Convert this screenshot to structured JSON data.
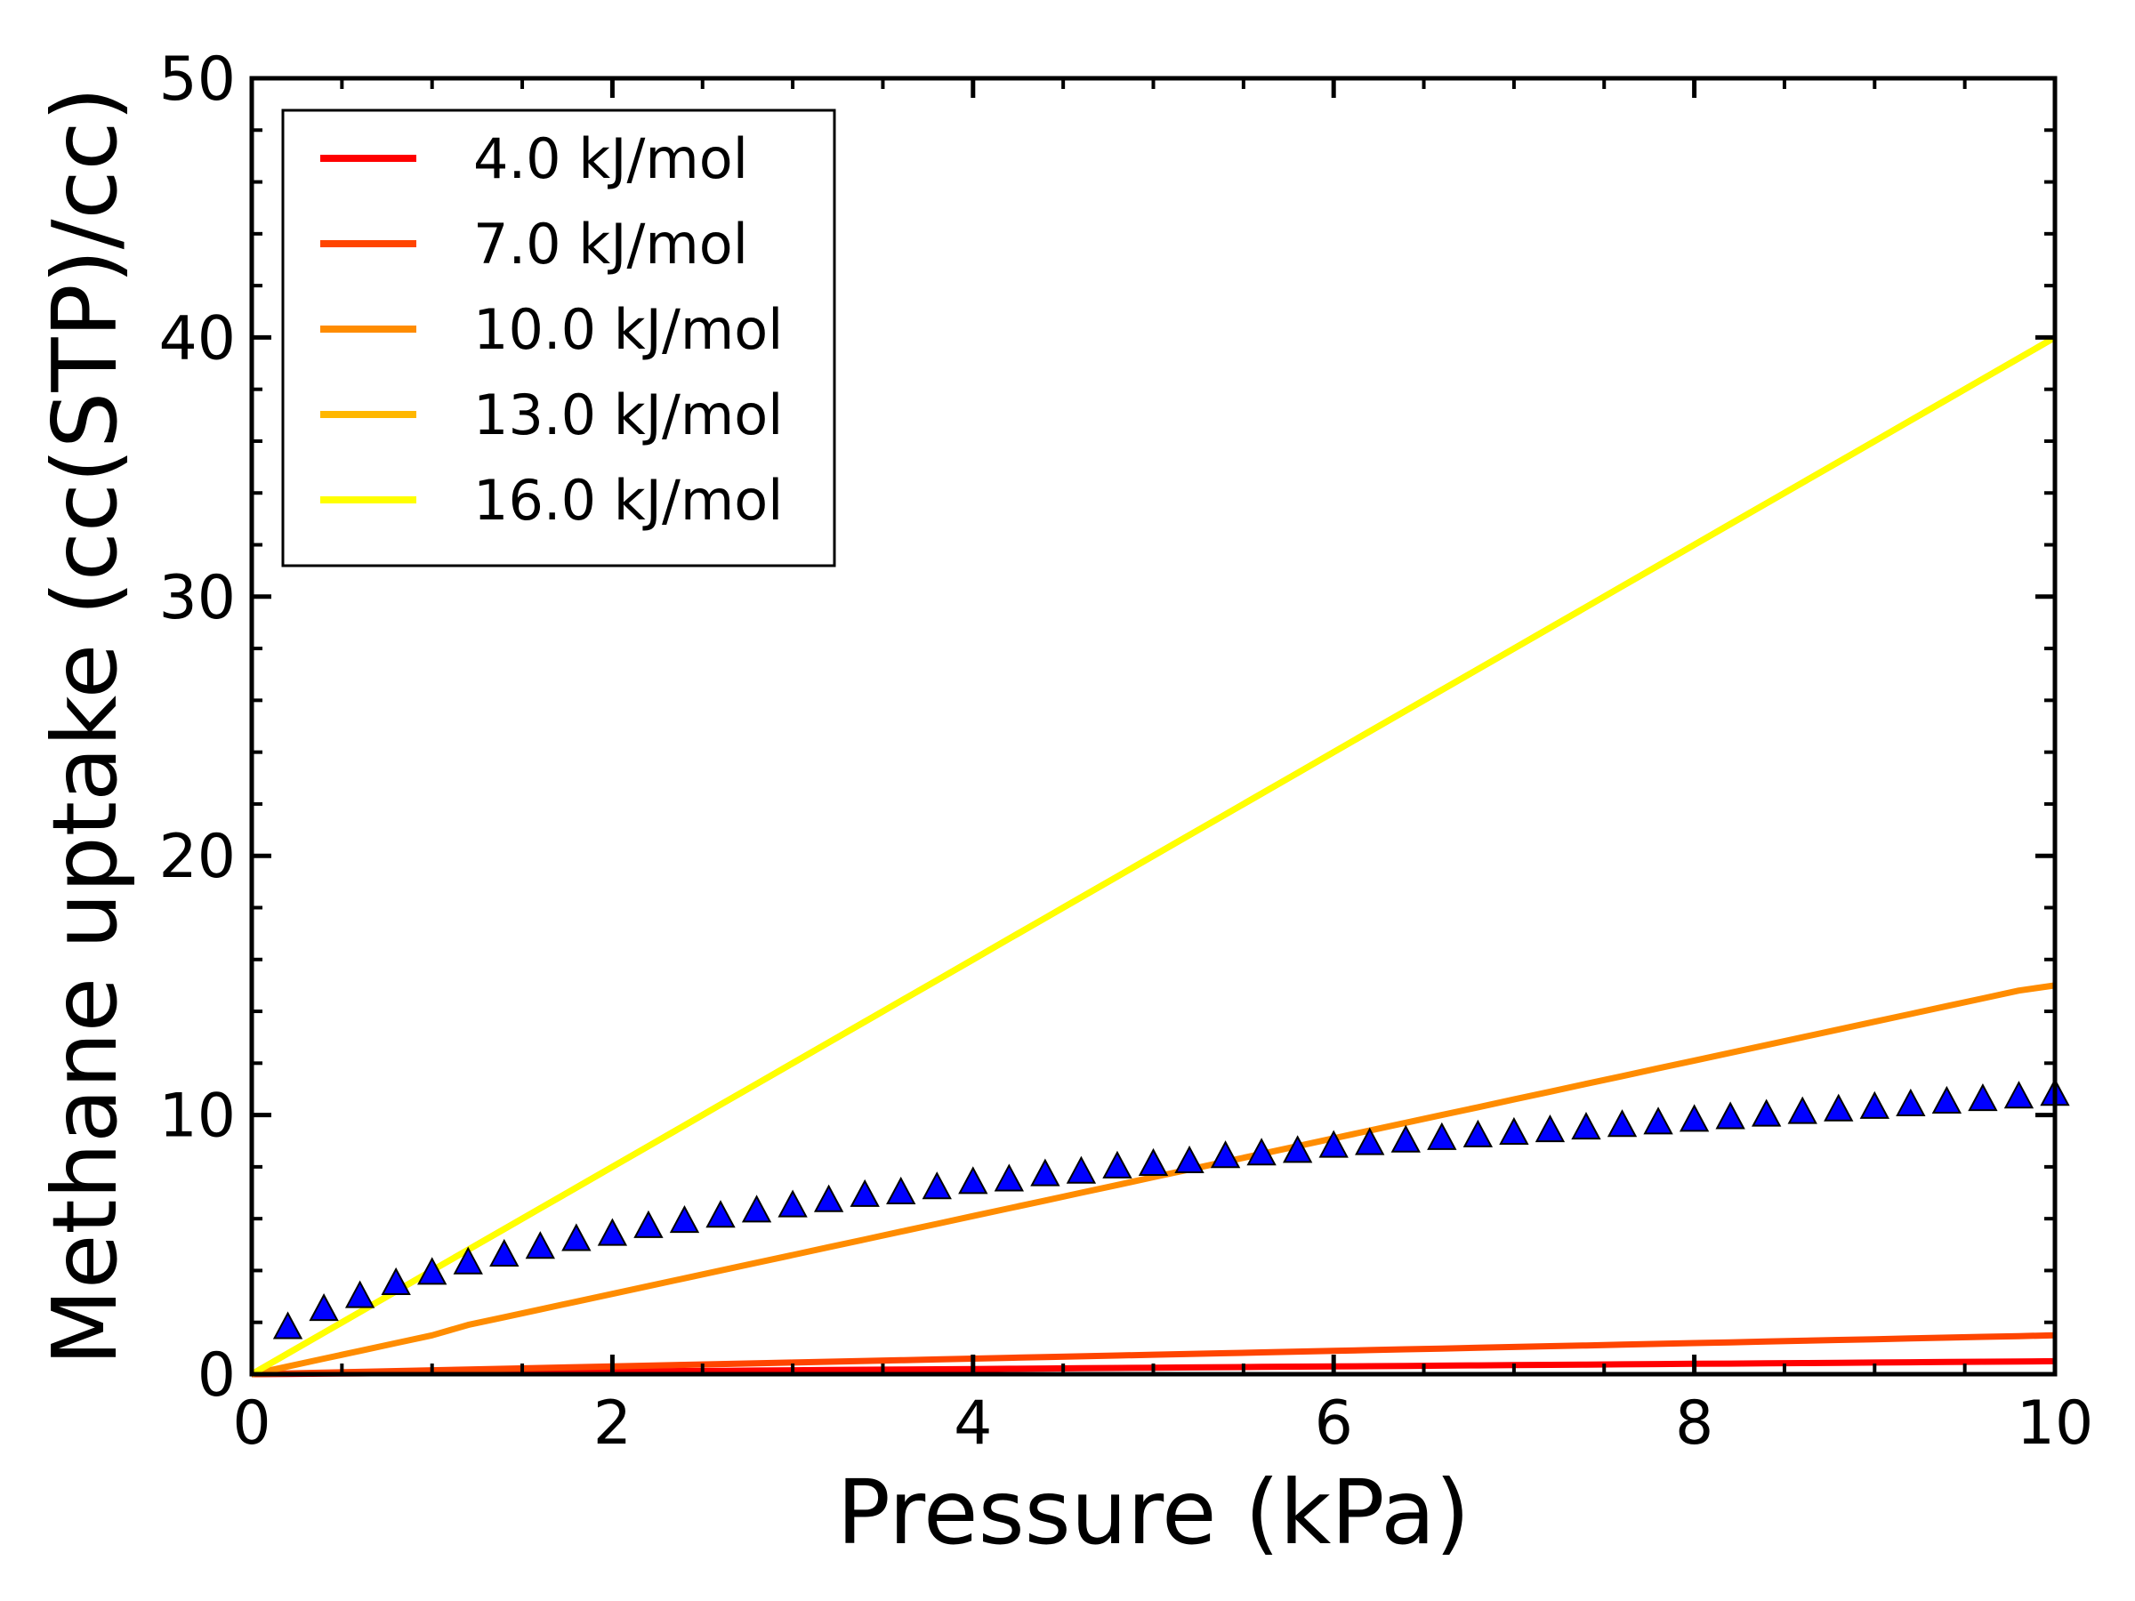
{
  "chart_data": {
    "type": "line",
    "xlabel": "Pressure (kPa)",
    "ylabel": "Methane uptake (cc(STP)/cc)",
    "xlim": [
      0,
      10
    ],
    "ylim": [
      0,
      50
    ],
    "xticks": [
      0,
      2,
      4,
      6,
      8,
      10
    ],
    "yticks": [
      0,
      10,
      20,
      30,
      40,
      50
    ],
    "grid": false,
    "legend_position": "top-left",
    "x": [
      0,
      0.2,
      0.4,
      0.6,
      0.8,
      1.0,
      1.2,
      1.4,
      1.6,
      1.8,
      2.0,
      2.2,
      2.4,
      2.6,
      2.8,
      3.0,
      3.2,
      3.4,
      3.6,
      3.8,
      4.0,
      4.2,
      4.4,
      4.6,
      4.8,
      5.0,
      5.2,
      5.4,
      5.6,
      5.8,
      6.0,
      6.2,
      6.4,
      6.6,
      6.8,
      7.0,
      7.2,
      7.4,
      7.6,
      7.8,
      8.0,
      8.2,
      8.4,
      8.6,
      8.8,
      9.0,
      9.2,
      9.4,
      9.6,
      9.8,
      10.0
    ],
    "series": [
      {
        "name": "4.0 kJ/mol",
        "color": "#ff0000",
        "values": [
          0,
          0.01,
          0.02,
          0.03,
          0.04,
          0.05,
          0.06,
          0.07,
          0.08,
          0.09,
          0.1,
          0.11,
          0.12,
          0.13,
          0.14,
          0.15,
          0.16,
          0.17,
          0.18,
          0.19,
          0.2,
          0.21,
          0.22,
          0.23,
          0.24,
          0.25,
          0.26,
          0.27,
          0.28,
          0.29,
          0.3,
          0.31,
          0.32,
          0.33,
          0.34,
          0.35,
          0.36,
          0.37,
          0.38,
          0.39,
          0.4,
          0.41,
          0.42,
          0.43,
          0.44,
          0.45,
          0.46,
          0.47,
          0.48,
          0.49,
          0.5
        ]
      },
      {
        "name": "7.0 kJ/mol",
        "color": "#ff4500",
        "values": [
          0,
          0.03,
          0.06,
          0.09,
          0.12,
          0.15,
          0.18,
          0.21,
          0.24,
          0.27,
          0.3,
          0.33,
          0.36,
          0.39,
          0.42,
          0.45,
          0.48,
          0.51,
          0.54,
          0.57,
          0.6,
          0.63,
          0.66,
          0.69,
          0.72,
          0.75,
          0.78,
          0.81,
          0.84,
          0.87,
          0.9,
          0.93,
          0.96,
          0.99,
          1.02,
          1.05,
          1.08,
          1.11,
          1.14,
          1.17,
          1.2,
          1.23,
          1.26,
          1.29,
          1.32,
          1.35,
          1.38,
          1.41,
          1.44,
          1.47,
          1.5
        ]
      },
      {
        "name": "10.0 kJ/mol",
        "color": "#ff8c00",
        "values": [
          0,
          0.3,
          0.6,
          0.9,
          1.2,
          1.5,
          1.9,
          2.2,
          2.5,
          2.8,
          3.1,
          3.4,
          3.7,
          4.0,
          4.3,
          4.6,
          4.9,
          5.2,
          5.5,
          5.8,
          6.1,
          6.4,
          6.7,
          7.0,
          7.3,
          7.6,
          7.9,
          8.2,
          8.5,
          8.8,
          9.1,
          9.4,
          9.7,
          10.0,
          10.3,
          10.6,
          10.9,
          11.2,
          11.5,
          11.8,
          12.1,
          12.4,
          12.7,
          13.0,
          13.3,
          13.6,
          13.9,
          14.2,
          14.5,
          14.8,
          15.0
        ]
      },
      {
        "name": "13.0 kJ/mol",
        "color": "#ffb700",
        "values": [
          0,
          0.8,
          1.6,
          2.4,
          3.2,
          4.0,
          4.8,
          5.6,
          6.4,
          7.2,
          8.0,
          8.8,
          9.6,
          10.4,
          11.2,
          12.0,
          12.8,
          13.6,
          14.4,
          15.2,
          16.0,
          16.8,
          17.6,
          18.4,
          19.2,
          20.0,
          20.8,
          21.6,
          22.4,
          23.2,
          24.0,
          24.8,
          25.6,
          26.4,
          27.2,
          28.0,
          28.8,
          29.6,
          30.4,
          31.2,
          32.0,
          32.8,
          33.6,
          34.4,
          35.2,
          36.0,
          36.8,
          37.6,
          38.4,
          39.2,
          40.0
        ]
      },
      {
        "name": "16.0 kJ/mol",
        "color": "#ffff00",
        "values": [
          0,
          0.8,
          1.6,
          2.4,
          3.2,
          4.0,
          4.8,
          5.6,
          6.4,
          7.2,
          8.0,
          8.8,
          9.6,
          10.4,
          11.2,
          12.0,
          12.8,
          13.6,
          14.4,
          15.2,
          16.0,
          16.8,
          17.6,
          18.4,
          19.2,
          20.0,
          20.8,
          21.6,
          22.4,
          23.2,
          24.0,
          24.8,
          25.6,
          26.4,
          27.2,
          28.0,
          28.8,
          29.6,
          30.4,
          31.2,
          32.0,
          32.8,
          33.6,
          34.4,
          35.2,
          36.0,
          36.8,
          37.6,
          38.4,
          39.2,
          40.0
        ]
      }
    ],
    "markers": {
      "shape": "triangle",
      "color": "#0000ff",
      "x": [
        0.2,
        0.4,
        0.6,
        0.8,
        1.0,
        1.2,
        1.4,
        1.6,
        1.8,
        2.0,
        2.2,
        2.4,
        2.6,
        2.8,
        3.0,
        3.2,
        3.4,
        3.6,
        3.8,
        4.0,
        4.2,
        4.4,
        4.6,
        4.8,
        5.0,
        5.2,
        5.4,
        5.6,
        5.8,
        6.0,
        6.2,
        6.4,
        6.6,
        6.8,
        7.0,
        7.2,
        7.4,
        7.6,
        7.8,
        8.0,
        8.2,
        8.4,
        8.6,
        8.8,
        9.0,
        9.2,
        9.4,
        9.6,
        9.8,
        10.0
      ],
      "values": [
        1.8,
        2.5,
        3.0,
        3.5,
        3.9,
        4.3,
        4.6,
        4.9,
        5.2,
        5.4,
        5.7,
        5.9,
        6.1,
        6.3,
        6.5,
        6.7,
        6.9,
        7.0,
        7.2,
        7.4,
        7.5,
        7.7,
        7.8,
        8.0,
        8.1,
        8.2,
        8.4,
        8.5,
        8.6,
        8.8,
        8.9,
        9.0,
        9.1,
        9.2,
        9.3,
        9.4,
        9.5,
        9.6,
        9.7,
        9.8,
        9.9,
        10.0,
        10.1,
        10.2,
        10.3,
        10.4,
        10.5,
        10.6,
        10.7,
        10.8
      ]
    }
  }
}
